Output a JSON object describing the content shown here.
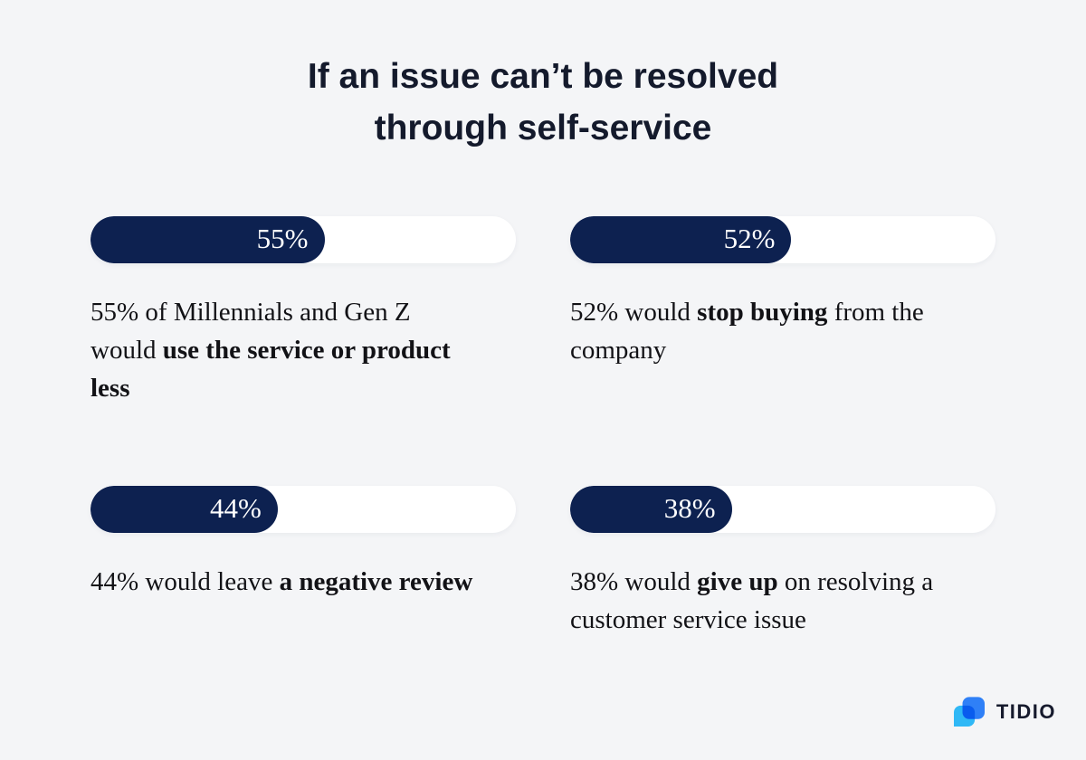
{
  "title": {
    "line1": "If an issue can’t be resolved",
    "line2": "through self-service"
  },
  "chart_data": {
    "type": "bar",
    "title": "If an issue can’t be resolved through self-service",
    "categories": [
      "Millennials and Gen Z would use the service or product less",
      "would stop buying from the company",
      "would leave a negative review",
      "would give up on resolving a customer service issue"
    ],
    "values": [
      55,
      52,
      44,
      38
    ],
    "unit": "%",
    "xlim": [
      0,
      100
    ],
    "orientation": "horizontal",
    "bar_color": "#0d2150",
    "track_color": "#ffffff",
    "value_labels": [
      "55%",
      "52%",
      "44%",
      "38%"
    ]
  },
  "stats": [
    {
      "desc_lines": [
        [
          {
            "t": "55% of Millennials and Gen Z",
            "b": false
          }
        ],
        [
          {
            "t": "would ",
            "b": false
          },
          {
            "t": "use the service or product",
            "b": true
          }
        ],
        [
          {
            "t": "less",
            "b": true
          }
        ]
      ]
    },
    {
      "desc_lines": [
        [
          {
            "t": "52% would ",
            "b": false
          },
          {
            "t": "stop buying",
            "b": true
          },
          {
            "t": " from the",
            "b": false
          }
        ],
        [
          {
            "t": "company",
            "b": false
          }
        ]
      ]
    },
    {
      "desc_lines": [
        [
          {
            "t": "44% would leave ",
            "b": false
          },
          {
            "t": "a negative review",
            "b": true
          }
        ]
      ]
    },
    {
      "desc_lines": [
        [
          {
            "t": "38% would ",
            "b": false
          },
          {
            "t": "give up",
            "b": true
          },
          {
            "t": " on resolving a",
            "b": false
          }
        ],
        [
          {
            "t": "customer service issue",
            "b": false
          }
        ]
      ]
    }
  ],
  "logo": {
    "brand": "TIDIO"
  },
  "colors": {
    "background": "#f4f5f7",
    "bar_fill": "#0d2150",
    "bar_track": "#ffffff",
    "title_color": "#141a2c",
    "body_text": "#121216",
    "logo_blue": "#2f80f7",
    "logo_cyan": "#2fb8f6",
    "logo_text": "#161a2d"
  }
}
